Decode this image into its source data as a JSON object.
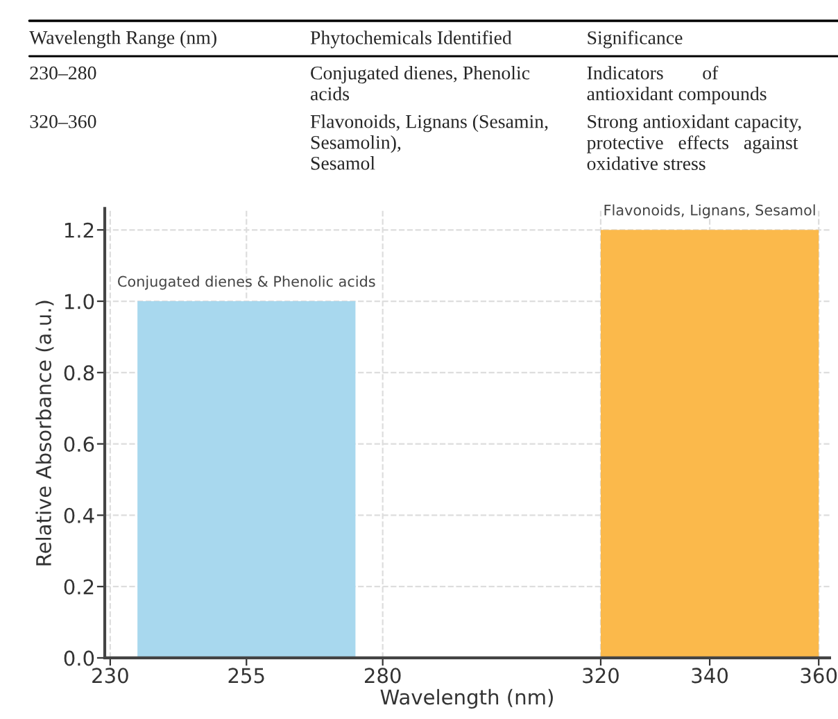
{
  "chart_data": {
    "type": "histogram",
    "xlabel": "Wavelength (nm)",
    "ylabel": "Relative Absorbance (a.u.)",
    "bins": [
      235,
      275,
      320,
      360
    ],
    "values": [
      1.0,
      null,
      1.2
    ],
    "colors": [
      "#a8d8ee",
      "#fbb94b",
      "#fbb94b"
    ],
    "xlim": [
      229,
      362
    ],
    "xticks": [
      230,
      255,
      280,
      320,
      340,
      360
    ],
    "ylim": [
      0,
      1.26
    ],
    "yticks": [
      {
        "value": 0,
        "label": "0.0"
      },
      0.2,
      0.4,
      0.6,
      0.8,
      {
        "value": 1.0,
        "label": "1.0"
      },
      1.2
    ],
    "grid": true,
    "annotations": [
      "Wavelength Range (nm)",
      "Phytochemicals Identified",
      "Significance",
      "230–280",
      "Conjugated dienes, Phenolic\nacids",
      "Indicators        of\nantioxidant compounds",
      "320–360",
      "Flavonoids, Lignans (Sesamin,\nSesamolin),\nSesamol",
      "Strong antioxidant capacity,\nprotective   effects   against\noxidative stress",
      {
        "text": "Conjugated dienes & Phenolic acids",
        "x": 255,
        "y": 1.0
      },
      {
        "text": "Flavonoids, Lignans, Sesamol",
        "x": 340,
        "y": 1.2
      }
    ]
  }
}
